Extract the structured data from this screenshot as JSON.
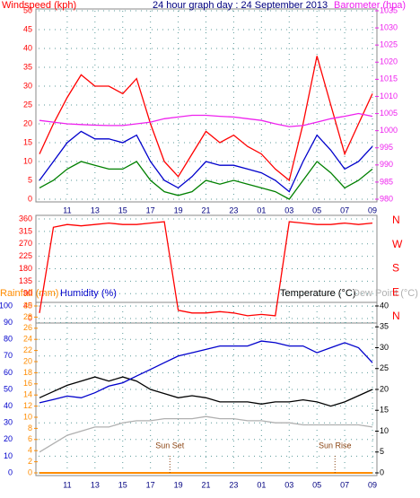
{
  "chart_data": [
    {
      "type": "line",
      "title": "24 hour graph day : 24 September 2013",
      "y_label": "Windspeed (kph)",
      "y2_label": "Barometer (hpa)",
      "categories": [
        null,
        null,
        "11",
        null,
        "13",
        null,
        "15",
        null,
        "17",
        null,
        "19",
        null,
        "21",
        null,
        "23",
        null,
        "01",
        null,
        "03",
        null,
        "05",
        null,
        "07",
        null,
        "09"
      ],
      "ylim": [
        0,
        50
      ],
      "yticks": [
        0,
        5,
        10,
        15,
        20,
        25,
        30,
        35,
        40,
        45,
        50
      ],
      "y2lim": [
        980,
        1035
      ],
      "y2ticks": [
        980,
        985,
        990,
        995,
        1000,
        1005,
        1010,
        1015,
        1020,
        1025,
        1030,
        1035
      ],
      "grid": true,
      "series": [
        {
          "color": "#ff0000",
          "values": [
            12,
            20,
            27,
            33,
            30,
            30,
            28,
            32,
            20,
            10,
            6,
            12,
            18,
            15,
            17,
            14,
            12,
            8,
            5,
            20,
            38,
            25,
            12,
            20,
            28
          ]
        },
        {
          "color": "#0000cc",
          "values": [
            5,
            10,
            15,
            18,
            16,
            16,
            15,
            17,
            10,
            5,
            3,
            6,
            10,
            9,
            9,
            8,
            7,
            5,
            2,
            10,
            17,
            13,
            8,
            10,
            14
          ]
        },
        {
          "color": "#008000",
          "values": [
            3,
            5,
            8,
            10,
            9,
            8,
            8,
            10,
            5,
            2,
            1,
            2,
            5,
            4,
            5,
            4,
            3,
            2,
            0,
            5,
            10,
            7,
            3,
            5,
            8
          ]
        },
        {
          "color": "#ee22ee",
          "axis": "y2",
          "values": [
            1003,
            1002.5,
            1002,
            1001.8,
            1001.6,
            1001.5,
            1001.5,
            1002,
            1002.5,
            1003.5,
            1004,
            1004.5,
            1004.5,
            1004.2,
            1004,
            1003.5,
            1003,
            1002,
            1001.2,
            1001.5,
            1002.5,
            1003.5,
            1004.2,
            1005,
            1004.2
          ]
        }
      ]
    },
    {
      "type": "line",
      "ylim": [
        0,
        360
      ],
      "yticks": [
        0,
        45,
        90,
        135,
        180,
        225,
        270,
        315,
        360
      ],
      "compass_labels": [
        "N",
        "W",
        "S",
        "E",
        "N"
      ],
      "series": [
        {
          "color": "#ff0000",
          "values": [
            20,
            330,
            340,
            335,
            340,
            345,
            340,
            340,
            345,
            350,
            30,
            20,
            20,
            25,
            20,
            10,
            15,
            10,
            350,
            345,
            340,
            340,
            345,
            340,
            345
          ]
        }
      ]
    },
    {
      "type": "line",
      "y_label": "Humidity (%)",
      "rain_label": "Rainfall (mm)",
      "y2_label": "Temperature (°C)",
      "dew_label": "Dew Point (°C)",
      "categories": [
        null,
        null,
        "11",
        null,
        "13",
        null,
        "15",
        null,
        "17",
        null,
        "19",
        null,
        "21",
        null,
        "23",
        null,
        "01",
        null,
        "03",
        null,
        "05",
        null,
        "07",
        null,
        "09"
      ],
      "ylim": [
        0,
        100
      ],
      "yticks": [
        0,
        10,
        20,
        30,
        40,
        50,
        60,
        70,
        80,
        90,
        100
      ],
      "rain_lim": [
        0,
        30
      ],
      "rain_ticks": [
        0,
        2,
        4,
        6,
        8,
        10,
        12,
        14,
        16,
        18,
        20,
        22,
        24,
        26,
        28,
        30
      ],
      "y2lim": [
        0,
        40
      ],
      "y2ticks": [
        0,
        5,
        10,
        15,
        20,
        25,
        30,
        35,
        40
      ],
      "annotations": [
        "Sun Set",
        "Sun Rise"
      ],
      "series": [
        {
          "color": "#000000",
          "axis": "y2",
          "values": [
            18,
            19.5,
            21,
            22,
            23,
            22,
            23,
            22,
            20,
            19,
            18,
            18.5,
            18,
            17,
            17,
            17,
            16.5,
            17,
            17,
            17.5,
            17,
            16,
            17,
            18.5,
            20
          ]
        },
        {
          "color": "#0000cc",
          "values": [
            42,
            44,
            46,
            45,
            48,
            52,
            54,
            58,
            62,
            66,
            70,
            72,
            74,
            76,
            76,
            76,
            79,
            78,
            76,
            76,
            72,
            75,
            78,
            75,
            66
          ]
        },
        {
          "color": "#b0b0b0",
          "axis": "y2",
          "values": [
            5,
            7,
            9,
            10,
            11,
            11,
            12,
            12.5,
            12.5,
            13,
            13,
            13,
            13.5,
            13,
            13,
            12.5,
            12.5,
            12,
            12,
            11.5,
            11.5,
            11.5,
            11.5,
            11.5,
            11
          ]
        },
        {
          "color": "#ff8c00",
          "axis": "rain",
          "values": [
            0,
            0,
            0,
            0,
            0,
            0,
            0,
            0,
            0,
            0,
            0,
            0,
            0,
            0,
            0,
            0,
            0,
            0,
            0,
            0,
            0,
            0,
            0,
            0,
            0
          ]
        }
      ]
    }
  ]
}
